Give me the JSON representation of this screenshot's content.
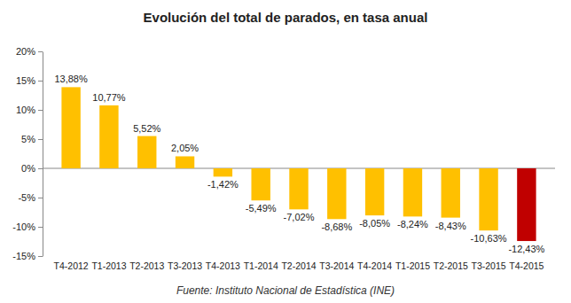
{
  "chart_data": {
    "type": "bar",
    "title": "Evolución del total de parados, en tasa anual",
    "source": "Fuente: Instituto Nacional de Estadística (INE)",
    "categories": [
      "T4-2012",
      "T1-2013",
      "T2-2013",
      "T3-2013",
      "T4-2013",
      "T1-2014",
      "T2-2014",
      "T3-2014",
      "T4-2014",
      "T1-2015",
      "T2-2015",
      "T3-2015",
      "T4-2015"
    ],
    "values": [
      13.88,
      10.77,
      5.52,
      2.05,
      -1.42,
      -5.49,
      -7.02,
      -8.68,
      -8.05,
      -8.24,
      -8.43,
      -10.63,
      -12.43
    ],
    "value_labels": [
      "13,88%",
      "10,77%",
      "5,52%",
      "2,05%",
      "-1,42%",
      "-5,49%",
      "-7,02%",
      "-8,68%",
      "-8,05%",
      "-8,24%",
      "-8,43%",
      "-10,63%",
      "-12,43%"
    ],
    "colors": [
      "#ffc000",
      "#ffc000",
      "#ffc000",
      "#ffc000",
      "#ffc000",
      "#ffc000",
      "#ffc000",
      "#ffc000",
      "#ffc000",
      "#ffc000",
      "#ffc000",
      "#ffc000",
      "#c00000"
    ],
    "ylim": [
      -15,
      20
    ],
    "yticks": [
      {
        "value": -15,
        "label": "-15%"
      },
      {
        "value": -10,
        "label": "-10%"
      },
      {
        "value": -5,
        "label": "-5%"
      },
      {
        "value": 0,
        "label": "0%"
      },
      {
        "value": 5,
        "label": "5%"
      },
      {
        "value": 10,
        "label": "10%"
      },
      {
        "value": 15,
        "label": "15%"
      },
      {
        "value": 20,
        "label": "20%"
      }
    ],
    "grid": false,
    "data_labels": true
  }
}
